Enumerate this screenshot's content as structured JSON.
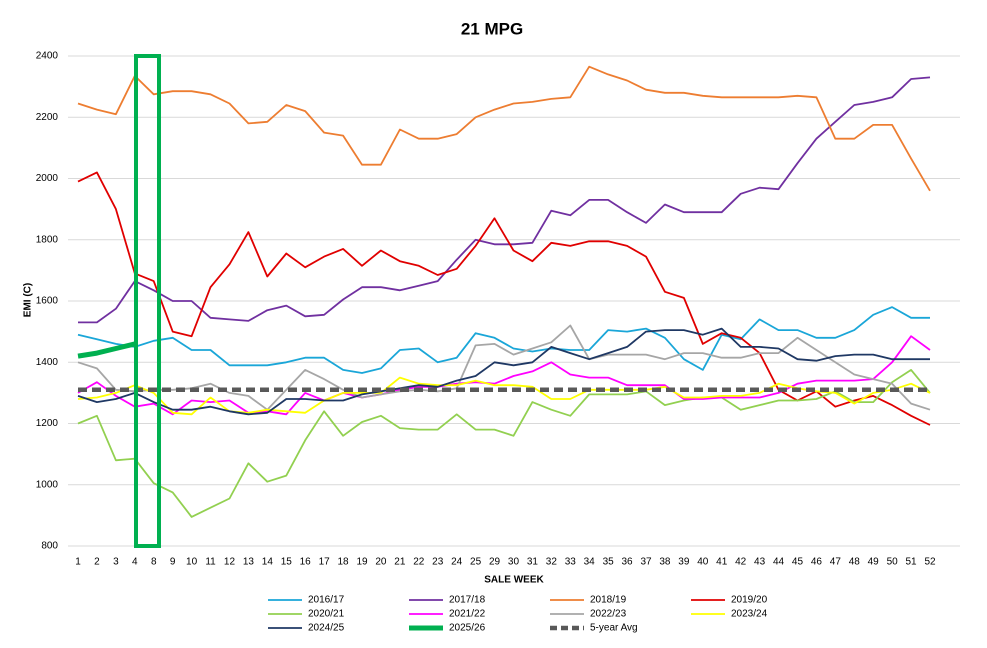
{
  "chart_data": {
    "type": "line",
    "title": "21 MPG",
    "x_label": "SALE WEEK",
    "y_label": "EMI (C)",
    "categories": [
      "1",
      "2",
      "3",
      "4",
      "8",
      "9",
      "10",
      "11",
      "12",
      "13",
      "14",
      "15",
      "16",
      "17",
      "18",
      "19",
      "20",
      "21",
      "22",
      "23",
      "24",
      "25",
      "29",
      "30",
      "31",
      "32",
      "33",
      "34",
      "35",
      "36",
      "37",
      "38",
      "39",
      "40",
      "41",
      "42",
      "43",
      "44",
      "45",
      "46",
      "47",
      "48",
      "49",
      "50",
      "51",
      "52"
    ],
    "ylim": [
      800,
      2400
    ],
    "yticks": [
      800,
      1000,
      1200,
      1400,
      1600,
      1800,
      2000,
      2200,
      2400
    ],
    "grid": true,
    "series": [
      {
        "name": "2016/17",
        "color": "#1aa6d8",
        "values": [
          1490,
          1475,
          1460,
          1450,
          1470,
          1480,
          1440,
          1440,
          1390,
          1390,
          1390,
          1400,
          1415,
          1415,
          1375,
          1365,
          1380,
          1440,
          1445,
          1400,
          1415,
          1495,
          1480,
          1445,
          1435,
          1445,
          1440,
          1440,
          1505,
          1500,
          1510,
          1480,
          1410,
          1375,
          1490,
          1475,
          1540,
          1505,
          1505,
          1480,
          1480,
          1505,
          1555,
          1580,
          1545,
          1545
        ]
      },
      {
        "name": "2017/18",
        "color": "#7030a0",
        "values": [
          1530,
          1530,
          1575,
          1665,
          1635,
          1600,
          1600,
          1545,
          1540,
          1535,
          1570,
          1585,
          1550,
          1555,
          1605,
          1645,
          1645,
          1635,
          1650,
          1665,
          1735,
          1800,
          1785,
          1785,
          1790,
          1895,
          1880,
          1930,
          1930,
          1890,
          1855,
          1915,
          1890,
          1890,
          1890,
          1950,
          1970,
          1965,
          2050,
          2130,
          2185,
          2240,
          2250,
          2265,
          2325,
          2330
        ]
      },
      {
        "name": "2018/19",
        "color": "#ed7d31",
        "values": [
          2245,
          2225,
          2210,
          2335,
          2275,
          2285,
          2285,
          2275,
          2245,
          2180,
          2185,
          2240,
          2220,
          2150,
          2140,
          2045,
          2045,
          2160,
          2130,
          2130,
          2145,
          2200,
          2225,
          2245,
          2250,
          2260,
          2265,
          2365,
          2340,
          2320,
          2290,
          2280,
          2280,
          2270,
          2265,
          2265,
          2265,
          2265,
          2270,
          2265,
          2130,
          2130,
          2175,
          2175,
          2065,
          1960
        ]
      },
      {
        "name": "2019/20",
        "color": "#e00000",
        "values": [
          1990,
          2020,
          1900,
          1690,
          1665,
          1500,
          1485,
          1645,
          1720,
          1825,
          1680,
          1755,
          1710,
          1745,
          1770,
          1715,
          1765,
          1730,
          1715,
          1685,
          1705,
          1780,
          1870,
          1765,
          1730,
          1790,
          1780,
          1795,
          1795,
          1780,
          1745,
          1630,
          1610,
          1460,
          1495,
          1480,
          1430,
          1310,
          1275,
          1305,
          1255,
          1275,
          1290,
          1260,
          1225,
          1195
        ]
      },
      {
        "name": "2020/21",
        "color": "#92d050",
        "values": [
          1200,
          1225,
          1080,
          1085,
          1005,
          975,
          895,
          925,
          955,
          1070,
          1010,
          1030,
          1145,
          1240,
          1160,
          1205,
          1225,
          1185,
          1180,
          1180,
          1230,
          1180,
          1180,
          1160,
          1270,
          1245,
          1225,
          1295,
          1295,
          1295,
          1305,
          1260,
          1275,
          1285,
          1285,
          1245,
          1260,
          1275,
          1275,
          1280,
          1305,
          1270,
          1270,
          1335,
          1375,
          1300
        ]
      },
      {
        "name": "2021/22",
        "color": "#ff00ff",
        "values": [
          1300,
          1335,
          1290,
          1255,
          1265,
          1230,
          1275,
          1270,
          1275,
          1235,
          1240,
          1230,
          1300,
          1275,
          1300,
          1285,
          1295,
          1310,
          1320,
          1320,
          1330,
          1335,
          1330,
          1355,
          1370,
          1400,
          1360,
          1350,
          1350,
          1325,
          1325,
          1325,
          1280,
          1280,
          1285,
          1285,
          1285,
          1300,
          1330,
          1340,
          1340,
          1340,
          1345,
          1400,
          1485,
          1440
        ]
      },
      {
        "name": "2022/23",
        "color": "#a6a6a6",
        "values": [
          1400,
          1380,
          1310,
          1305,
          1310,
          1310,
          1315,
          1330,
          1300,
          1290,
          1245,
          1310,
          1375,
          1345,
          1310,
          1285,
          1295,
          1305,
          1310,
          1305,
          1315,
          1455,
          1460,
          1425,
          1445,
          1465,
          1520,
          1410,
          1425,
          1425,
          1425,
          1410,
          1430,
          1430,
          1415,
          1415,
          1430,
          1430,
          1480,
          1440,
          1400,
          1360,
          1345,
          1330,
          1265,
          1245
        ]
      },
      {
        "name": "2023/24",
        "color": "#ffff00",
        "values": [
          1280,
          1285,
          1300,
          1325,
          1300,
          1235,
          1230,
          1285,
          1240,
          1235,
          1245,
          1240,
          1235,
          1275,
          1300,
          1300,
          1300,
          1350,
          1330,
          1325,
          1325,
          1340,
          1325,
          1325,
          1320,
          1280,
          1280,
          1310,
          1310,
          1310,
          1310,
          1320,
          1285,
          1285,
          1290,
          1290,
          1300,
          1330,
          1315,
          1305,
          1300,
          1265,
          1300,
          1310,
          1330,
          1300
        ]
      },
      {
        "name": "2024/25",
        "color": "#1f3864",
        "values": [
          1290,
          1270,
          1280,
          1300,
          1270,
          1245,
          1245,
          1255,
          1240,
          1230,
          1235,
          1280,
          1280,
          1275,
          1275,
          1295,
          1305,
          1315,
          1325,
          1320,
          1340,
          1355,
          1400,
          1390,
          1400,
          1450,
          1430,
          1410,
          1430,
          1450,
          1500,
          1505,
          1505,
          1490,
          1510,
          1450,
          1450,
          1445,
          1410,
          1405,
          1420,
          1425,
          1425,
          1410,
          1410,
          1410
        ]
      },
      {
        "name": "2025/26",
        "color": "#00b050",
        "line_style": "thick",
        "values": [
          1420,
          1430,
          1445,
          1460,
          null,
          null,
          null,
          null,
          null,
          null,
          null,
          null,
          null,
          null,
          null,
          null,
          null,
          null,
          null,
          null,
          null,
          null,
          null,
          null,
          null,
          null,
          null,
          null,
          null,
          null,
          null,
          null,
          null,
          null,
          null,
          null,
          null,
          null,
          null,
          null,
          null,
          null,
          null,
          null,
          null,
          null
        ]
      },
      {
        "name": "5-year Avg",
        "color": "#595959",
        "line_style": "dashed",
        "values": [
          1310,
          1310,
          1310,
          1310,
          1310,
          1310,
          1310,
          1310,
          1310,
          1310,
          1310,
          1310,
          1310,
          1310,
          1310,
          1310,
          1310,
          1310,
          1310,
          1310,
          1310,
          1310,
          1310,
          1310,
          1310,
          1310,
          1310,
          1310,
          1310,
          1310,
          1310,
          1310,
          1310,
          1310,
          1310,
          1310,
          1310,
          1310,
          1310,
          1310,
          1310,
          1310,
          1310,
          1310,
          1310,
          1310
        ]
      }
    ]
  }
}
